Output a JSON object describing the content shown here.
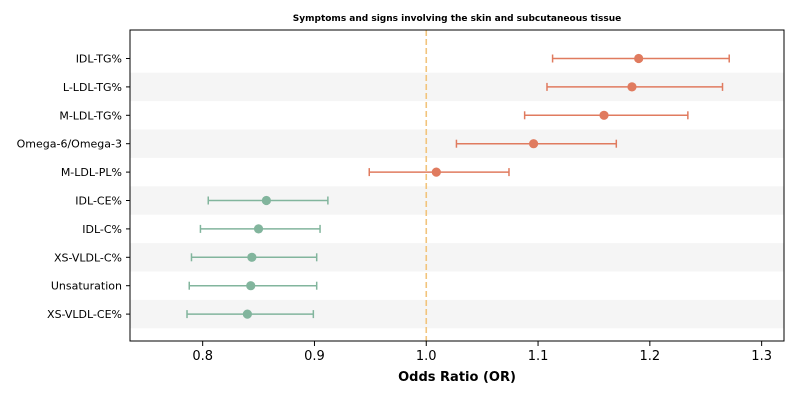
{
  "chart_data": {
    "type": "scatter",
    "subtype": "forest-plot",
    "title": "Symptoms and signs involving the skin and subcutaneous tissue",
    "xlabel": "Odds Ratio (OR)",
    "ylabel": "",
    "xlim": [
      0.735,
      1.32
    ],
    "xticks": [
      0.8,
      0.9,
      1.0,
      1.1,
      1.2,
      1.3
    ],
    "xtick_labels": [
      "0.8",
      "0.9",
      "1.0",
      "1.1",
      "1.2",
      "1.3"
    ],
    "reference_line": 1.0,
    "reference_color": "#f2c47c",
    "positive_color": "#e07b5f",
    "negative_color": "#82b59d",
    "band_color": "#f5f5f5",
    "grid": false,
    "rows": [
      {
        "label": "IDL-TG%",
        "or": 1.19,
        "lo": 1.113,
        "hi": 1.271
      },
      {
        "label": "L-LDL-TG%",
        "or": 1.184,
        "lo": 1.108,
        "hi": 1.265
      },
      {
        "label": "M-LDL-TG%",
        "or": 1.159,
        "lo": 1.088,
        "hi": 1.234
      },
      {
        "label": "Omega-6/Omega-3",
        "or": 1.096,
        "lo": 1.027,
        "hi": 1.17
      },
      {
        "label": "M-LDL-PL%",
        "or": 1.009,
        "lo": 0.949,
        "hi": 1.074
      },
      {
        "label": "IDL-CE%",
        "or": 0.857,
        "lo": 0.805,
        "hi": 0.912
      },
      {
        "label": "IDL-C%",
        "or": 0.85,
        "lo": 0.798,
        "hi": 0.905
      },
      {
        "label": "XS-VLDL-C%",
        "or": 0.844,
        "lo": 0.79,
        "hi": 0.902
      },
      {
        "label": "Unsaturation",
        "or": 0.843,
        "lo": 0.788,
        "hi": 0.902
      },
      {
        "label": "XS-VLDL-CE%",
        "or": 0.84,
        "lo": 0.786,
        "hi": 0.899
      }
    ]
  }
}
